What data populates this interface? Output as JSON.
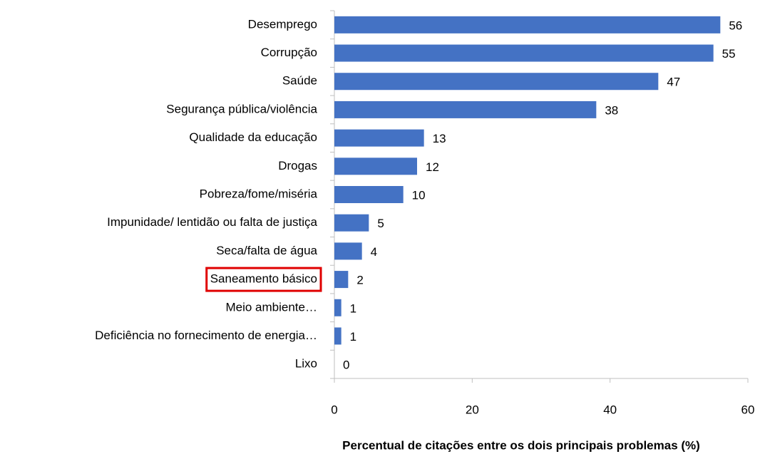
{
  "chart_data": {
    "type": "bar",
    "orientation": "horizontal",
    "categories": [
      "Desemprego",
      "Corrupção",
      "Saúde",
      "Segurança pública/violência",
      "Qualidade da educação",
      "Drogas",
      "Pobreza/fome/miséria",
      "Impunidade/ lentidão ou falta de justiça",
      "Seca/falta de água",
      "Saneamento básico",
      "Meio ambiente…",
      "Deficiência no fornecimento de energia…",
      "Lixo"
    ],
    "values": [
      56,
      55,
      47,
      38,
      13,
      12,
      10,
      5,
      4,
      2,
      1,
      1,
      0
    ],
    "color": "#4472c4",
    "xlim": [
      0,
      60
    ],
    "xticks": [
      0,
      20,
      40,
      60
    ],
    "x_label": "Percentual de citações entre os dois principais problemas (%)",
    "grid": false
  }
}
